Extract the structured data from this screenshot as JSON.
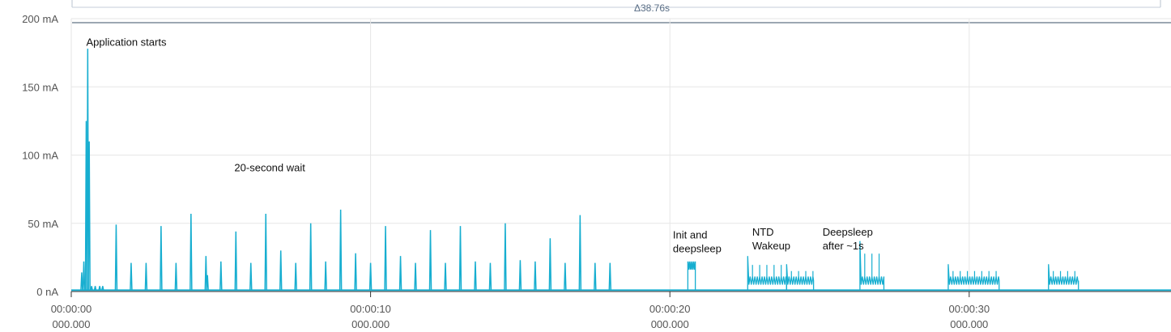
{
  "chart_data": {
    "type": "line",
    "title": "",
    "xlabel": "",
    "ylabel": "",
    "xlim_s": [
      0,
      38.76
    ],
    "ylim_mA": [
      0,
      200
    ],
    "grid": true,
    "delta_label": "Δ38.76s",
    "y_ticks": [
      {
        "value": 0,
        "label": "0 nA"
      },
      {
        "value": 50,
        "label": "50 mA"
      },
      {
        "value": 100,
        "label": "100 mA"
      },
      {
        "value": 150,
        "label": "150 mA"
      },
      {
        "value": 200,
        "label": "200 mA"
      }
    ],
    "x_ticks": [
      {
        "value": 0,
        "time": "00:00:00",
        "ms": "000.000"
      },
      {
        "value": 10,
        "time": "00:00:10",
        "ms": "000.000"
      },
      {
        "value": 20,
        "time": "00:00:20",
        "ms": "000.000"
      },
      {
        "value": 30,
        "time": "00:00:30",
        "ms": "000.000"
      }
    ],
    "baseline_mA": 1,
    "series": [
      {
        "color": "#17aed0",
        "spikes": [
          {
            "t": 0.35,
            "mA": 14
          },
          {
            "t": 0.42,
            "mA": 22
          },
          {
            "t": 0.5,
            "mA": 125
          },
          {
            "t": 0.55,
            "mA": 178
          },
          {
            "t": 0.6,
            "mA": 110
          },
          {
            "t": 0.68,
            "mA": 4
          },
          {
            "t": 0.8,
            "mA": 4
          },
          {
            "t": 0.95,
            "mA": 4
          },
          {
            "t": 1.05,
            "mA": 4
          },
          {
            "t": 1.5,
            "mA": 49
          },
          {
            "t": 2.0,
            "mA": 21
          },
          {
            "t": 2.5,
            "mA": 21
          },
          {
            "t": 3.0,
            "mA": 48
          },
          {
            "t": 3.5,
            "mA": 21
          },
          {
            "t": 4.0,
            "mA": 57
          },
          {
            "t": 4.5,
            "mA": 26
          },
          {
            "t": 4.55,
            "mA": 12
          },
          {
            "t": 5.0,
            "mA": 22
          },
          {
            "t": 5.5,
            "mA": 44
          },
          {
            "t": 6.0,
            "mA": 21
          },
          {
            "t": 6.5,
            "mA": 57
          },
          {
            "t": 7.0,
            "mA": 30
          },
          {
            "t": 7.5,
            "mA": 21
          },
          {
            "t": 8.0,
            "mA": 50
          },
          {
            "t": 8.5,
            "mA": 22
          },
          {
            "t": 9.0,
            "mA": 60
          },
          {
            "t": 9.5,
            "mA": 28
          },
          {
            "t": 10.0,
            "mA": 21
          },
          {
            "t": 10.5,
            "mA": 48
          },
          {
            "t": 11.0,
            "mA": 26
          },
          {
            "t": 11.5,
            "mA": 21
          },
          {
            "t": 12.0,
            "mA": 45
          },
          {
            "t": 12.5,
            "mA": 21
          },
          {
            "t": 13.0,
            "mA": 48
          },
          {
            "t": 13.5,
            "mA": 22
          },
          {
            "t": 14.0,
            "mA": 21
          },
          {
            "t": 14.5,
            "mA": 50
          },
          {
            "t": 15.0,
            "mA": 23
          },
          {
            "t": 15.5,
            "mA": 22
          },
          {
            "t": 16.0,
            "mA": 39
          },
          {
            "t": 16.5,
            "mA": 21
          },
          {
            "t": 17.0,
            "mA": 56
          },
          {
            "t": 17.5,
            "mA": 21
          },
          {
            "t": 18.0,
            "mA": 21
          }
        ],
        "bursts": [
          {
            "start": 20.6,
            "end": 20.85,
            "level_mA": 19,
            "peak_mA": 22,
            "step": 0.05
          },
          {
            "start": 22.6,
            "end": 23.9,
            "level_mA": 8,
            "peak_mA": 26,
            "step": 0.08
          },
          {
            "start": 23.9,
            "end": 24.8,
            "level_mA": 8,
            "peak_mA": 20,
            "step": 0.08
          },
          {
            "start": 26.35,
            "end": 27.15,
            "level_mA": 8,
            "peak_mA": 37,
            "step": 0.08
          },
          {
            "start": 29.3,
            "end": 31.0,
            "level_mA": 8,
            "peak_mA": 20,
            "step": 0.08
          },
          {
            "start": 32.65,
            "end": 33.65,
            "level_mA": 8,
            "peak_mA": 20,
            "step": 0.08
          }
        ]
      }
    ],
    "annotations": [
      {
        "lines": [
          "Application starts"
        ],
        "t": 0.5,
        "mA": 180
      },
      {
        "lines": [
          "20-second wait"
        ],
        "t": 5.45,
        "mA": 88
      },
      {
        "lines": [
          "Init and",
          "deepsleep"
        ],
        "t": 20.1,
        "mA": 39
      },
      {
        "lines": [
          "NTD",
          "Wakeup"
        ],
        "t": 22.75,
        "mA": 41
      },
      {
        "lines": [
          "Deepsleep",
          "after ~1s"
        ],
        "t": 25.1,
        "mA": 41
      }
    ]
  }
}
